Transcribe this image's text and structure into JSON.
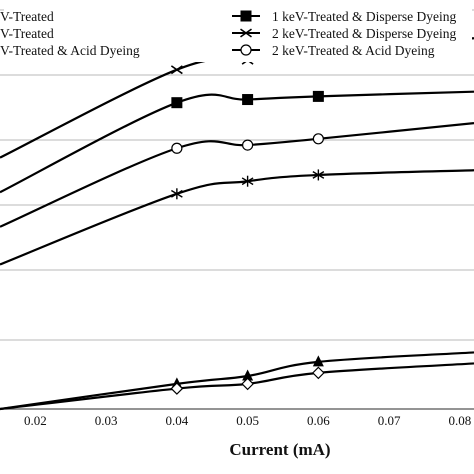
{
  "chart_data": {
    "type": "line",
    "title": "",
    "xlabel": "Current (mA)",
    "ylabel": "",
    "x_ticks": [
      "0.02",
      "0.03",
      "0.04",
      "0.05",
      "0.06",
      "0.07",
      "0.08"
    ],
    "xlim": [
      0.015,
      0.082
    ],
    "ylim": [
      0,
      100
    ],
    "grid": "horizontal",
    "legend_placement": "top",
    "legend": [
      {
        "label": "V-Treated",
        "marker": "none"
      },
      {
        "label": "V-Treated",
        "marker": "none"
      },
      {
        "label": "V-Treated & Acid Dyeing",
        "marker": "none"
      },
      {
        "label": "1 keV-Treated & Disperse Dyeing",
        "marker": "filled-square"
      },
      {
        "label": "2 keV-Treated & Disperse Dyeing",
        "marker": "x"
      },
      {
        "label": "2 keV-Treated & Acid Dyeing",
        "marker": "open-circle"
      }
    ],
    "series": [
      {
        "name": "2 keV-Treated & Disperse Dyeing",
        "marker": "x",
        "x": [
          0.015,
          0.04,
          0.05,
          0.06,
          0.082
        ],
        "y": [
          56,
          84,
          87,
          90,
          94
        ]
      },
      {
        "name": "1 keV-Treated & Disperse Dyeing",
        "marker": "filled-square",
        "x": [
          0.015,
          0.04,
          0.05,
          0.06,
          0.082
        ],
        "y": [
          45,
          73.5,
          74.5,
          75.5,
          77
        ]
      },
      {
        "name": "2 keV-Treated & Acid Dyeing",
        "marker": "open-circle",
        "x": [
          0.015,
          0.04,
          0.05,
          0.06,
          0.082
        ],
        "y": [
          34,
          59,
          60,
          62,
          67
        ]
      },
      {
        "name": "",
        "marker": "asterisk",
        "x": [
          0.015,
          0.04,
          0.05,
          0.06,
          0.082
        ],
        "y": [
          22,
          44.5,
          48.5,
          50.5,
          52
        ]
      },
      {
        "name": "",
        "marker": "filled-triangle",
        "x": [
          0.015,
          0.04,
          0.05,
          0.06,
          0.082
        ],
        "y": [
          -24,
          -16,
          -13.5,
          -9,
          -6
        ]
      },
      {
        "name": "",
        "marker": "open-diamond",
        "x": [
          0.015,
          0.04,
          0.05,
          0.06,
          0.082
        ],
        "y": [
          -24,
          -17.5,
          -16,
          -12.5,
          -9.5
        ]
      }
    ]
  }
}
